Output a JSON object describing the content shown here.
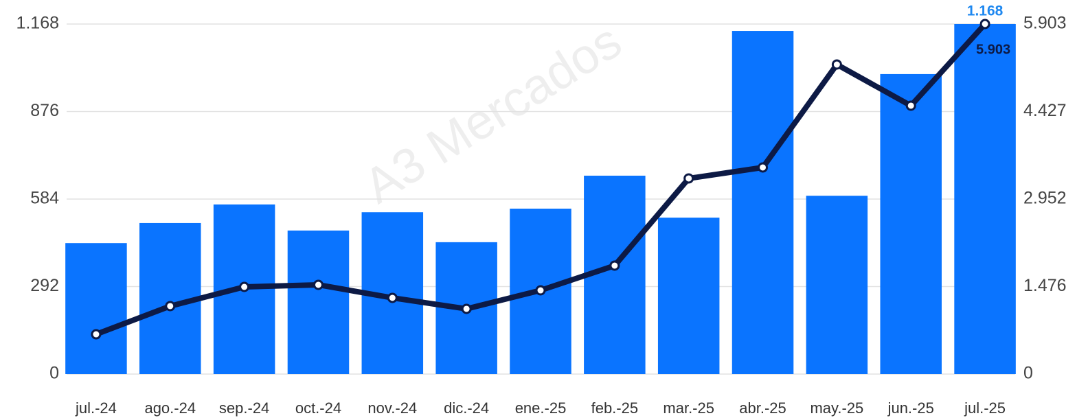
{
  "chart_data": {
    "type": "bar_line",
    "watermark": "A3 Mercados",
    "categories": [
      "jul.-24",
      "ago.-24",
      "sep.-24",
      "oct.-24",
      "nov.-24",
      "dic.-24",
      "ene.-25",
      "feb.-25",
      "mar.-25",
      "abr.-25",
      "may.-25",
      "jun.-25",
      "jul.-25"
    ],
    "series": [
      {
        "type": "bar",
        "color": "#0a74ff",
        "axis": "y",
        "values": [
          437,
          504,
          566,
          479,
          540,
          440,
          552,
          662,
          522,
          1145,
          595,
          1001,
          1168
        ],
        "value_labels": [
          null,
          null,
          null,
          null,
          null,
          null,
          null,
          null,
          null,
          null,
          null,
          null,
          "1.168"
        ]
      },
      {
        "type": "line",
        "color": "#0d1a45",
        "axis": "y2",
        "values": [
          671,
          1146,
          1470,
          1505,
          1285,
          1100,
          1412,
          1829,
          3299,
          3484,
          5220,
          4526,
          5903
        ],
        "value_labels": [
          null,
          null,
          null,
          null,
          null,
          null,
          null,
          null,
          null,
          null,
          null,
          null,
          "5.903"
        ]
      }
    ],
    "ylim": [
      0,
      1168
    ],
    "yticks": [
      0,
      292,
      584,
      876,
      {
        "value": 1168,
        "label": "1.168"
      }
    ],
    "y2lim": [
      0,
      5903
    ],
    "y2ticks": [
      0,
      {
        "value": 1476,
        "label": "1.476"
      },
      {
        "value": 2952,
        "label": "2.952"
      },
      {
        "value": 4427,
        "label": "4.427"
      },
      {
        "value": 5903,
        "label": "5.903"
      }
    ],
    "grid": true
  }
}
